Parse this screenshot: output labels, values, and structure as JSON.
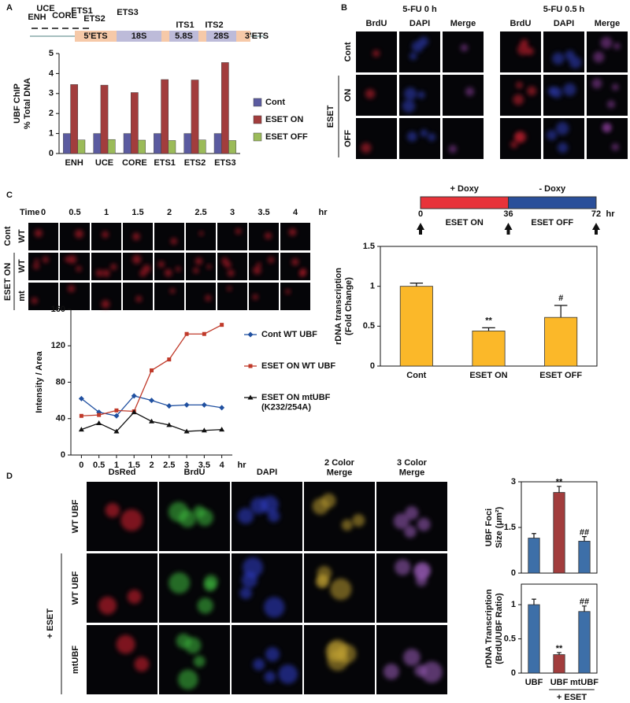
{
  "panels": [
    "A",
    "B",
    "C",
    "D"
  ],
  "panel_a_diagram": {
    "elements": [
      "ENH",
      "UCE",
      "CORE",
      "ETS1",
      "ETS2",
      "ETS3"
    ],
    "regions": [
      "5'ETS",
      "18S",
      "5.8S",
      "28S",
      "3'ETS"
    ],
    "spacers": [
      "ITS1",
      "ITS2"
    ]
  },
  "panel_b": {
    "conditions": [
      "5-FU 0 h",
      "5-FU 0.5 h"
    ],
    "channels": [
      "BrdU",
      "DAPI",
      "Merge"
    ],
    "rows": [
      "Cont",
      "ON",
      "OFF"
    ],
    "group": "ESET"
  },
  "panel_c_images": {
    "time_label": "Time",
    "times": [
      0,
      0.5,
      1,
      1.5,
      2,
      2.5,
      3,
      3.5,
      4
    ],
    "unit": "hr",
    "row_groups": [
      "Cont",
      "ESET  ON"
    ],
    "rows": [
      "WT",
      "WT",
      "mt"
    ]
  },
  "timeline": {
    "segments": [
      "+ Doxy",
      "- Doxy"
    ],
    "states": [
      "ESET  ON",
      "ESET  OFF"
    ],
    "ticks": [
      0,
      36,
      72
    ],
    "unit": "hr"
  },
  "panel_d_images": {
    "channels": [
      "DsRed",
      "BrdU",
      "DAPI",
      "2 Color Merge",
      "3 Color Merge"
    ],
    "rows": [
      "WT UBF",
      "WT UBF",
      "mtUBF"
    ],
    "group": "+ ESET"
  },
  "chart_data": [
    {
      "type": "bar",
      "ylabel": [
        "UBF  ChIP",
        "% Total DNA"
      ],
      "categories": [
        "ENH",
        "UCE",
        "CORE",
        "ETS1",
        "ETS2",
        "ETS3"
      ],
      "series": [
        {
          "name": "Cont",
          "color": "#5b5ba0",
          "values": [
            1,
            1,
            1,
            1,
            1,
            1
          ]
        },
        {
          "name": "ESET ON",
          "color": "#a23d3d",
          "values": [
            3.45,
            3.42,
            3.05,
            3.7,
            3.68,
            4.55
          ]
        },
        {
          "name": "ESET OFF",
          "color": "#9bbb59",
          "values": [
            0.68,
            0.7,
            0.67,
            0.65,
            0.68,
            0.65
          ]
        }
      ],
      "ylim": [
        0,
        5
      ],
      "yticks": [
        0,
        1,
        2,
        3,
        4,
        5
      ]
    },
    {
      "type": "line",
      "ylabel": [
        "Intensity / Area"
      ],
      "x": [
        0,
        0.5,
        1,
        1.5,
        2,
        2.5,
        3,
        3.5,
        4
      ],
      "x_unit": "hr",
      "series": [
        {
          "name": "Cont WT UBF",
          "color": "#2050a0",
          "marker": "diamond",
          "values": [
            62,
            47,
            43,
            65,
            60,
            54,
            55,
            55,
            52
          ]
        },
        {
          "name": "ESET ON WT UBF",
          "color": "#c03a2a",
          "marker": "square",
          "values": [
            43,
            44,
            49,
            48,
            93,
            105,
            133,
            133,
            143
          ]
        },
        {
          "name": "ESET ON mtUBF (K232/254A)",
          "color": "#111111",
          "marker": "triangle",
          "values": [
            28,
            35,
            26,
            47,
            37,
            33,
            26,
            27,
            28
          ]
        }
      ],
      "xlim": [
        -0.3,
        4.3
      ],
      "xticks": [
        0,
        0.5,
        1,
        1.5,
        2,
        2.5,
        3,
        3.5,
        4
      ],
      "ylim": [
        0,
        160
      ],
      "yticks": [
        0,
        40,
        80,
        120,
        160
      ]
    },
    {
      "type": "bar",
      "ylabel": [
        "rDNA transcription",
        "(Fold Change)"
      ],
      "categories": [
        "Cont",
        "ESET ON",
        "ESET OFF"
      ],
      "values": [
        1.0,
        0.44,
        0.61
      ],
      "errors": [
        0.04,
        0.04,
        0.15
      ],
      "annotations": [
        null,
        "**",
        "#"
      ],
      "colors": [
        "#fbb829",
        "#fbb829",
        "#fbb829"
      ],
      "ylim": [
        0,
        1.5
      ],
      "yticks": [
        0,
        0.5,
        1,
        1.5
      ]
    },
    {
      "type": "bar",
      "ylabel": [
        "UBF Foci",
        "Size (μm²)"
      ],
      "categories": [
        null,
        null,
        null
      ],
      "values": [
        1.15,
        2.65,
        1.05
      ],
      "errors": [
        0.15,
        0.2,
        0.15
      ],
      "annotations": [
        null,
        "**",
        "##"
      ],
      "colors": [
        "#3d6fa8",
        "#a23d3d",
        "#3d6fa8"
      ],
      "ylim": [
        0,
        3
      ],
      "yticks": [
        0,
        1.5,
        3
      ]
    },
    {
      "type": "bar",
      "ylabel": [
        "rDNA Transcription",
        "(BrdU/UBF Ratio)"
      ],
      "categories": [
        "UBF",
        "UBF",
        "mtUBF"
      ],
      "group_label": "+ ESET",
      "values": [
        1.0,
        0.27,
        0.9
      ],
      "errors": [
        0.08,
        0.03,
        0.08
      ],
      "annotations": [
        null,
        "**",
        "##"
      ],
      "colors": [
        "#3d6fa8",
        "#a23d3d",
        "#3d6fa8"
      ],
      "ylim": [
        0,
        1.3
      ],
      "yticks": [
        0,
        0.5,
        1
      ]
    }
  ]
}
